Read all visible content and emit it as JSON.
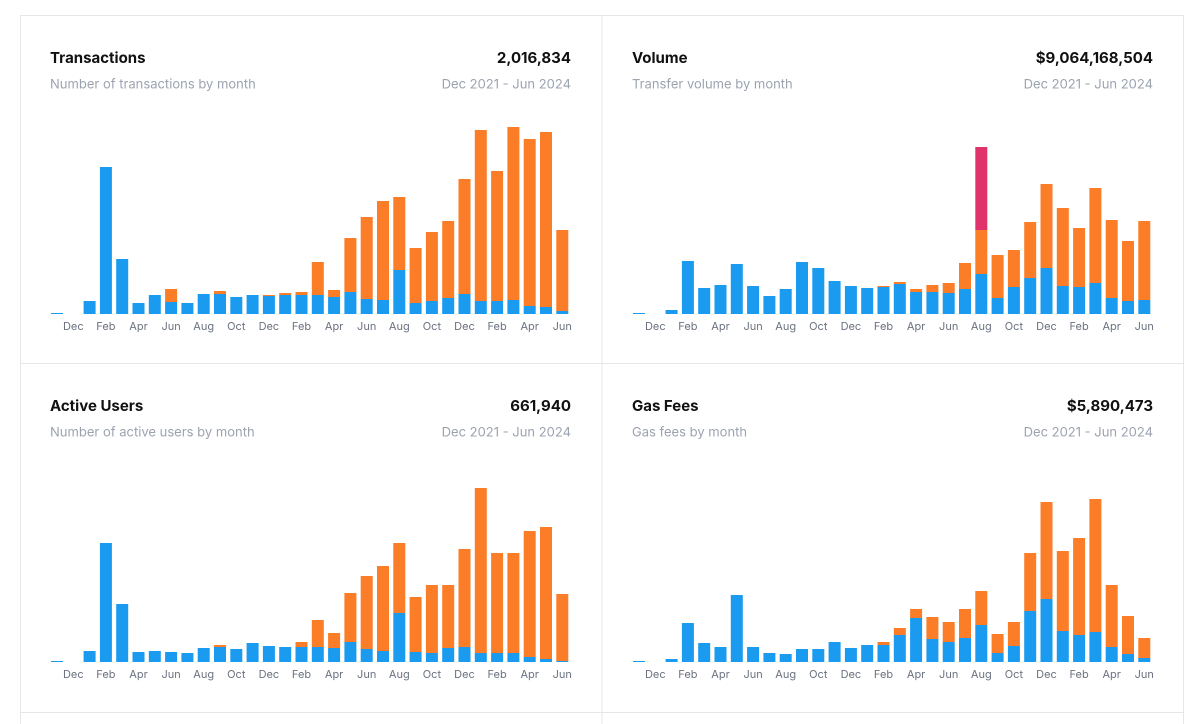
{
  "chart_data": [
    {
      "type": "bar",
      "title": "Transactions",
      "subtitle": "Number of transactions by month",
      "total": "2,016,834",
      "date_range": "Dec 2021 - Jun 2024",
      "categories": [
        null,
        "Dec",
        null,
        "Feb",
        null,
        "Apr",
        null,
        "Jun",
        null,
        "Aug",
        null,
        "Oct",
        null,
        "Dec",
        null,
        "Feb",
        null,
        "Apr",
        null,
        "Jun",
        null,
        "Aug",
        null,
        "Oct",
        null,
        "Dec",
        null,
        "Feb",
        null,
        "Apr",
        null,
        "Jun"
      ],
      "series": [
        {
          "color": "#1a9bef",
          "values": [
            1,
            0,
            13,
            147,
            55,
            11,
            19,
            12,
            11,
            20,
            20,
            17,
            19,
            18,
            19,
            19,
            19,
            17,
            22,
            15,
            14,
            44,
            11,
            13,
            16,
            20,
            13,
            13,
            14,
            8,
            7,
            3
          ]
        },
        {
          "color": "#fb7d27",
          "values": [
            0,
            0,
            0,
            0,
            0,
            0,
            0,
            13,
            0,
            0,
            3,
            0,
            0,
            1,
            2,
            3,
            33,
            7,
            54,
            82,
            99,
            73,
            55,
            69,
            77,
            115,
            171,
            130,
            173,
            167,
            175,
            81
          ]
        }
      ]
    },
    {
      "type": "bar",
      "title": "Volume",
      "subtitle": "Transfer volume by month",
      "total": "$9,064,168,504",
      "date_range": "Dec 2021 - Jun 2024",
      "categories": [
        null,
        "Dec",
        null,
        "Feb",
        null,
        "Apr",
        null,
        "Jun",
        null,
        "Aug",
        null,
        "Oct",
        null,
        "Dec",
        null,
        "Feb",
        null,
        "Apr",
        null,
        "Jun",
        null,
        "Aug",
        null,
        "Oct",
        null,
        "Dec",
        null,
        "Feb",
        null,
        "Apr",
        null,
        "Jun"
      ],
      "series": [
        {
          "color": "#1a9bef",
          "values": [
            1,
            0,
            4,
            53,
            26,
            29,
            50,
            28,
            18,
            25,
            52,
            46,
            33,
            28,
            26,
            27,
            30,
            22,
            22,
            21,
            25,
            40,
            16,
            27,
            36,
            46,
            28,
            27,
            31,
            16,
            13,
            14
          ]
        },
        {
          "color": "#fb7d27",
          "values": [
            0,
            0,
            0,
            0,
            0,
            0,
            0,
            0,
            0,
            0,
            0,
            0,
            0,
            0,
            0,
            1,
            2,
            3,
            7,
            10,
            26,
            44,
            43,
            37,
            56,
            84,
            78,
            59,
            95,
            78,
            60,
            79
          ]
        },
        {
          "color": "#e0336b",
          "values": [
            0,
            0,
            0,
            0,
            0,
            0,
            0,
            0,
            0,
            0,
            0,
            0,
            0,
            0,
            0,
            0,
            0,
            0,
            0,
            0,
            0,
            83,
            0,
            0,
            0,
            0,
            0,
            0,
            0,
            0,
            0,
            0
          ]
        }
      ]
    },
    {
      "type": "bar",
      "title": "Active Users",
      "subtitle": "Number of active users by month",
      "total": "661,940",
      "date_range": "Dec 2021 - Jun 2024",
      "categories": [
        null,
        "Dec",
        null,
        "Feb",
        null,
        "Apr",
        null,
        "Jun",
        null,
        "Aug",
        null,
        "Oct",
        null,
        "Dec",
        null,
        "Feb",
        null,
        "Apr",
        null,
        "Jun",
        null,
        "Aug",
        null,
        "Oct",
        null,
        "Dec",
        null,
        "Feb",
        null,
        "Apr",
        null,
        "Jun"
      ],
      "series": [
        {
          "color": "#1a9bef",
          "values": [
            1,
            0,
            11,
            119,
            58,
            10,
            11,
            10,
            9,
            14,
            15,
            13,
            19,
            16,
            15,
            15,
            15,
            14,
            20,
            13,
            11,
            49,
            10,
            9,
            14,
            15,
            9,
            9,
            9,
            5,
            3,
            1
          ]
        },
        {
          "color": "#fb7d27",
          "values": [
            0,
            0,
            0,
            0,
            0,
            0,
            0,
            0,
            0,
            0,
            2,
            0,
            0,
            0,
            0,
            5,
            27,
            15,
            49,
            73,
            85,
            70,
            55,
            68,
            63,
            98,
            165,
            100,
            100,
            126,
            132,
            67
          ]
        }
      ]
    },
    {
      "type": "bar",
      "title": "Gas Fees",
      "subtitle": "Gas fees by month",
      "total": "$5,890,473",
      "date_range": "Dec 2021 - Jun 2024",
      "categories": [
        null,
        "Dec",
        null,
        "Feb",
        null,
        "Apr",
        null,
        "Jun",
        null,
        "Aug",
        null,
        "Oct",
        null,
        "Dec",
        null,
        "Feb",
        null,
        "Apr",
        null,
        "Jun",
        null,
        "Aug",
        null,
        "Oct",
        null,
        "Dec",
        null,
        "Feb",
        null,
        "Apr",
        null,
        "Jun"
      ],
      "series": [
        {
          "color": "#1a9bef",
          "values": [
            1,
            0,
            3,
            39,
            19,
            15,
            67,
            15,
            9,
            8,
            13,
            13,
            20,
            14,
            17,
            17,
            27,
            44,
            23,
            20,
            24,
            37,
            9,
            16,
            51,
            63,
            31,
            27,
            30,
            15,
            8,
            4
          ]
        },
        {
          "color": "#fb7d27",
          "values": [
            0,
            0,
            0,
            0,
            0,
            0,
            0,
            0,
            0,
            0,
            0,
            0,
            0,
            0,
            0,
            3,
            7,
            9,
            22,
            20,
            29,
            34,
            19,
            24,
            58,
            97,
            80,
            97,
            133,
            62,
            38,
            20
          ]
        }
      ]
    }
  ]
}
